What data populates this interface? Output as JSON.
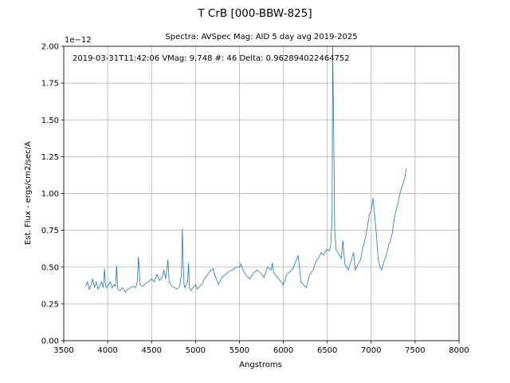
{
  "chart_data": {
    "type": "line",
    "title": "T CrB [000-BBW-825]",
    "subtitle": "Spectra: AVSpec  Mag: AID 5 day avg   2019-2025",
    "xlabel": "Angstroms",
    "ylabel": "Est. Flux - ergs/cm2/sec/A",
    "y_scale_label": "1e−12",
    "annotation": "2019-03-31T11:42:06  VMag:  9.748  #: 46  Delta: 0.962894022464752",
    "annotation_color": "#ff0000",
    "line_color": "#1f77b4",
    "grid": true,
    "xlim": [
      3500,
      8000
    ],
    "ylim": [
      0.0,
      2.0
    ],
    "xticks": [
      3500,
      4000,
      4500,
      5000,
      5500,
      6000,
      6500,
      7000,
      7500,
      8000
    ],
    "xtick_labels": [
      "3500",
      "4000",
      "4500",
      "5000",
      "5500",
      "6000",
      "6500",
      "7000",
      "7500",
      "8000"
    ],
    "yticks": [
      0.0,
      0.25,
      0.5,
      0.75,
      1.0,
      1.25,
      1.5,
      1.75,
      2.0
    ],
    "ytick_labels": [
      "0.00",
      "0.25",
      "0.50",
      "0.75",
      "1.00",
      "1.25",
      "1.50",
      "1.75",
      "2.00"
    ],
    "series": [
      {
        "x": [
          3750,
          3770,
          3790,
          3810,
          3830,
          3850,
          3870,
          3890,
          3910,
          3930,
          3950,
          3965,
          3975,
          3990,
          4010,
          4030,
          4050,
          4070,
          4090,
          4101,
          4115,
          4140,
          4170,
          4200,
          4230,
          4260,
          4290,
          4320,
          4340,
          4350,
          4370,
          4400,
          4430,
          4470,
          4500,
          4530,
          4560,
          4590,
          4620,
          4640,
          4660,
          4686,
          4700,
          4730,
          4760,
          4790,
          4820,
          4840,
          4850,
          4861,
          4870,
          4880,
          4890,
          4910,
          4921,
          4930,
          4950,
          4970,
          5000,
          5020,
          5050,
          5080,
          5100,
          5130,
          5160,
          5200,
          5230,
          5260,
          5300,
          5340,
          5380,
          5420,
          5460,
          5500,
          5520,
          5540,
          5580,
          5620,
          5660,
          5700,
          5740,
          5780,
          5820,
          5860,
          5876,
          5890,
          5920,
          5960,
          6000,
          6040,
          6080,
          6110,
          6130,
          6150,
          6170,
          6200,
          6230,
          6260,
          6300,
          6340,
          6370,
          6400,
          6430,
          6460,
          6490,
          6520,
          6540,
          6555,
          6562,
          6570,
          6585,
          6600,
          6620,
          6640,
          6660,
          6678,
          6700,
          6720,
          6740,
          6760,
          6780,
          6800,
          6820,
          6850,
          6880,
          6900,
          6920,
          6950,
          6980,
          7000,
          7020,
          7040,
          7060,
          7080,
          7100,
          7120,
          7140,
          7160,
          7180,
          7200,
          7220,
          7240,
          7260,
          7280,
          7300,
          7320,
          7340,
          7360,
          7380,
          7400
        ],
        "y": [
          0.37,
          0.4,
          0.35,
          0.38,
          0.42,
          0.36,
          0.4,
          0.35,
          0.37,
          0.4,
          0.36,
          0.49,
          0.37,
          0.36,
          0.38,
          0.4,
          0.36,
          0.38,
          0.37,
          0.51,
          0.35,
          0.34,
          0.36,
          0.33,
          0.35,
          0.36,
          0.37,
          0.36,
          0.41,
          0.57,
          0.38,
          0.37,
          0.39,
          0.4,
          0.42,
          0.4,
          0.45,
          0.41,
          0.43,
          0.48,
          0.42,
          0.55,
          0.4,
          0.37,
          0.36,
          0.35,
          0.37,
          0.45,
          0.76,
          0.5,
          0.38,
          0.36,
          0.38,
          0.4,
          0.53,
          0.36,
          0.34,
          0.36,
          0.38,
          0.35,
          0.37,
          0.39,
          0.42,
          0.44,
          0.47,
          0.49,
          0.43,
          0.38,
          0.43,
          0.45,
          0.47,
          0.48,
          0.5,
          0.5,
          0.52,
          0.48,
          0.44,
          0.42,
          0.46,
          0.48,
          0.46,
          0.43,
          0.5,
          0.48,
          0.53,
          0.46,
          0.44,
          0.41,
          0.38,
          0.45,
          0.47,
          0.49,
          0.52,
          0.55,
          0.58,
          0.4,
          0.38,
          0.36,
          0.45,
          0.48,
          0.54,
          0.56,
          0.6,
          0.58,
          0.62,
          0.61,
          0.65,
          0.85,
          2.0,
          1.6,
          0.75,
          0.62,
          0.6,
          0.58,
          0.56,
          0.68,
          0.52,
          0.5,
          0.48,
          0.52,
          0.56,
          0.6,
          0.48,
          0.52,
          0.55,
          0.62,
          0.66,
          0.75,
          0.86,
          0.88,
          0.97,
          0.85,
          0.72,
          0.55,
          0.5,
          0.48,
          0.53,
          0.56,
          0.6,
          0.65,
          0.68,
          0.73,
          0.82,
          0.88,
          0.92,
          0.98,
          1.03,
          1.06,
          1.1,
          1.17
        ]
      }
    ]
  }
}
